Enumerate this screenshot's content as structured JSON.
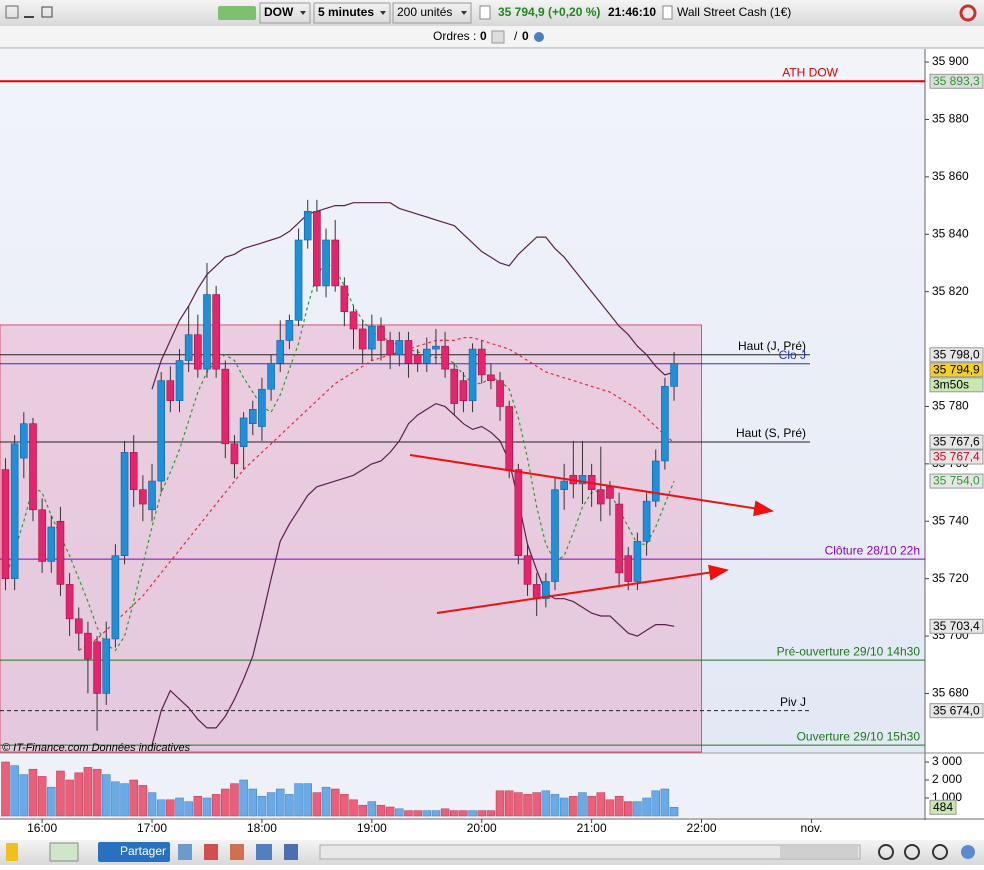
{
  "toolbar": {
    "symbol": "DOW",
    "period": "5 minutes",
    "quantity": "200 unités",
    "quote": "35 794,9 (+0,20 %)",
    "time": "21:46:10",
    "instrument": "Wall Street Cash (1€)"
  },
  "orders": {
    "label": "Ordres :",
    "buy": "0",
    "separator": "/",
    "sell": "0"
  },
  "share": "Partager",
  "watermark": "© IT-Finance.com  Données indicatives",
  "chart_data": {
    "type": "candlestick",
    "x": [
      940,
      945,
      950,
      955,
      960,
      965,
      970,
      975,
      980,
      985,
      990,
      995,
      1000,
      1005,
      1010,
      1015,
      1020,
      1025,
      1030,
      1035,
      1040,
      1045,
      1050,
      1055,
      1060,
      1065,
      1070,
      1075,
      1080,
      1085,
      1090,
      1095,
      1100,
      1105,
      1110,
      1115,
      1120,
      1125,
      1130,
      1135,
      1140,
      1145,
      1150,
      1155,
      1160,
      1165,
      1170,
      1175,
      1180,
      1185,
      1190,
      1195,
      1200,
      1205,
      1210,
      1215,
      1220,
      1225,
      1230,
      1235,
      1240,
      1245,
      1250,
      1255,
      1260,
      1265,
      1270,
      1275,
      1280,
      1285,
      1290,
      1295,
      1300,
      1305
    ],
    "open": [
      35758,
      35720,
      35762,
      35774,
      35744,
      35726,
      35740,
      35718,
      35706,
      35701,
      35698,
      35680,
      35699,
      35728,
      35764,
      35751,
      35744,
      35754,
      35789,
      35782,
      35796,
      35805,
      35793,
      35819,
      35793,
      35767,
      35766,
      35774,
      35773,
      35786,
      35795,
      35803,
      35810,
      35838,
      35848,
      35822,
      35838,
      35822,
      35813,
      35807,
      35800,
      35808,
      35803,
      35798,
      35803,
      35798,
      35795,
      35800,
      35801,
      35793,
      35789,
      35782,
      35800,
      35791,
      35789,
      35780,
      35758,
      35728,
      35718,
      35713,
      35719,
      35751,
      35756,
      35753,
      35756,
      35751,
      35752,
      35746,
      35728,
      35719,
      35733,
      35747,
      35761,
      35787
    ],
    "high": [
      35762,
      35770,
      35778,
      35776,
      35748,
      35742,
      35745,
      35722,
      35710,
      35705,
      35700,
      35705,
      35732,
      35768,
      35770,
      35756,
      35760,
      35792,
      35794,
      35800,
      35815,
      35812,
      35830,
      35822,
      35796,
      35770,
      35778,
      35782,
      35790,
      35798,
      35810,
      35812,
      35842,
      35852,
      35852,
      35842,
      35845,
      35825,
      35815,
      35810,
      35812,
      35811,
      35806,
      35806,
      35806,
      35800,
      35804,
      35807,
      35806,
      35795,
      35792,
      35802,
      35803,
      35795,
      35792,
      35782,
      35760,
      35732,
      35722,
      35722,
      35755,
      35760,
      35768,
      35768,
      35760,
      35766,
      35754,
      35750,
      35731,
      35736,
      35750,
      35765,
      35790,
      35799
    ],
    "low": [
      35716,
      35716,
      35755,
      35740,
      35722,
      35722,
      35714,
      35700,
      35695,
      35680,
      35667,
      35676,
      35696,
      35725,
      35745,
      35740,
      35740,
      35750,
      35778,
      35778,
      35792,
      35790,
      35790,
      35790,
      35762,
      35755,
      35758,
      35770,
      35768,
      35782,
      35792,
      35800,
      35808,
      35835,
      35820,
      35818,
      35820,
      35808,
      35800,
      35795,
      35796,
      35796,
      35793,
      35794,
      35790,
      35792,
      35792,
      35795,
      35790,
      35777,
      35778,
      35778,
      35788,
      35786,
      35775,
      35755,
      35725,
      35714,
      35707,
      35710,
      35716,
      35744,
      35748,
      35746,
      35745,
      35740,
      35742,
      35717,
      35716,
      35716,
      35728,
      35745,
      35758,
      35782
    ],
    "close": [
      35720,
      35767,
      35774,
      35744,
      35726,
      35738,
      35718,
      35706,
      35701,
      35692,
      35680,
      35699,
      35728,
      35764,
      35751,
      35746,
      35754,
      35789,
      35782,
      35796,
      35805,
      35793,
      35819,
      35793,
      35767,
      35760,
      35776,
      35779,
      35786,
      35795,
      35803,
      35810,
      35838,
      35848,
      35822,
      35838,
      35822,
      35813,
      35807,
      35800,
      35808,
      35803,
      35798,
      35803,
      35795,
      35795,
      35800,
      35801,
      35793,
      35781,
      35782,
      35800,
      35791,
      35789,
      35780,
      35758,
      35728,
      35718,
      35713,
      35719,
      35751,
      35754,
      35753,
      35756,
      35751,
      35746,
      35748,
      35722,
      35719,
      35733,
      35747,
      35761,
      35787,
      35795
    ],
    "up_color": "#1f8fd8",
    "down_color": "#e3256e",
    "indicators": [
      {
        "color": "#5a2050",
        "dash": false,
        "values": [
          null,
          null,
          null,
          null,
          null,
          null,
          null,
          null,
          null,
          null,
          null,
          null,
          null,
          null,
          null,
          null,
          35786,
          35796,
          35803,
          35810,
          35815,
          35821,
          35826,
          35829,
          35832,
          35833,
          35835,
          35836,
          35837,
          35838,
          35839,
          35841,
          35844,
          35847,
          35848,
          35849,
          35850,
          35850,
          35851,
          35851,
          35851,
          35851,
          35851,
          35849,
          35848,
          35847,
          35846,
          35845,
          35844,
          35843,
          35840,
          35837,
          35834,
          35832,
          35830,
          35829,
          35833,
          35836,
          35839,
          35839,
          35835,
          35832,
          35828,
          35824,
          35820,
          35816,
          35812,
          35808,
          35805,
          35801,
          35798,
          35794,
          35791,
          35792
        ]
      },
      {
        "color": "#5a2050",
        "dash": false,
        "values": [
          null,
          null,
          null,
          null,
          null,
          null,
          null,
          null,
          null,
          null,
          null,
          null,
          null,
          null,
          null,
          null,
          35662,
          35674,
          35681,
          35678,
          35675,
          35671,
          35668,
          35668,
          35672,
          35678,
          35685,
          35693,
          35706,
          35720,
          35733,
          35739,
          35744,
          35749,
          35752,
          35753,
          35754,
          35755,
          35756,
          35758,
          35760,
          35761,
          35764,
          35768,
          35774,
          35777,
          35779,
          35781,
          35780,
          35777,
          35774,
          35772,
          35773,
          35771,
          35768,
          35761,
          35747,
          35732,
          35723,
          35715,
          35713,
          35713,
          35712,
          35710,
          35708,
          35707,
          35707,
          35704,
          35701,
          35700,
          35702,
          35704,
          35704,
          35703.4
        ]
      },
      {
        "color": "#e8283c",
        "dash": true,
        "values": [
          null,
          null,
          null,
          null,
          null,
          null,
          null,
          null,
          35695,
          35697,
          35699,
          35702,
          35705,
          35708,
          35711,
          35714,
          35718,
          35722,
          35726,
          35730,
          35734,
          35738,
          35742,
          35746,
          35750,
          35754,
          35758,
          35761,
          35764,
          35767,
          35770,
          35773,
          35776,
          35779,
          35782,
          35785,
          35788,
          35790,
          35792,
          35794,
          35796,
          35797,
          35798,
          35799,
          35800,
          35801,
          35802,
          35803,
          35803,
          35803,
          35804,
          35804,
          35803,
          35802,
          35801,
          35800,
          35798,
          35796,
          35794,
          35792,
          35791,
          35790,
          35789,
          35788,
          35787,
          35786,
          35785,
          35783,
          35781,
          35779,
          35776,
          35773,
          35770,
          35767.4
        ]
      },
      {
        "color": "#2a9a2a",
        "dash": true,
        "values": [
          35720,
          35730,
          35740,
          35752,
          35750,
          35742,
          35735,
          35728,
          35720,
          35712,
          35703,
          35697,
          35695,
          35700,
          35712,
          35725,
          35738,
          35750,
          35757,
          35765,
          35775,
          35785,
          35792,
          35796,
          35798,
          35796,
          35790,
          35785,
          35780,
          35778,
          35784,
          35793,
          35802,
          35815,
          35826,
          35830,
          35828,
          35822,
          35815,
          35810,
          35806,
          35804,
          35803,
          35801,
          35800,
          35799,
          35798,
          35797,
          35797,
          35795,
          35791,
          35788,
          35788,
          35790,
          35789,
          35786,
          35776,
          35762,
          35745,
          35732,
          35726,
          35728,
          35736,
          35745,
          35750,
          35751,
          35750,
          35744,
          35738,
          35732,
          35732,
          35738,
          35746,
          35754
        ]
      }
    ],
    "levels": [
      {
        "name": "ATH DOW",
        "value": 35893.3,
        "color": "#e00000",
        "style": "thick"
      },
      {
        "name": "Haut (J, Pré)",
        "value": 35798.0,
        "color": "#222222",
        "style": "thin"
      },
      {
        "name": "Clo J",
        "value": 35794.9,
        "color": "#2233dd",
        "style": "thin"
      },
      {
        "name": "Haut (S, Pré)",
        "value": 35767.6,
        "color": "#222222",
        "style": "thin"
      },
      {
        "name": "Clôture 28/10 22h",
        "value": 35726.8,
        "color": "#8a00c8",
        "style": "thin"
      },
      {
        "name": "Pré-ouverture 29/10 14h30",
        "value": 35691.6,
        "color": "#1a7a1a",
        "style": "thin"
      },
      {
        "name": "Piv J",
        "value": 35674.0,
        "color": "#222222",
        "style": "dashed"
      },
      {
        "name": "Ouverture 29/10 15h30",
        "value": 35662.0,
        "color": "#1a7a1a",
        "style": "thin"
      }
    ],
    "zone": {
      "top": 35808.4,
      "end": 1320,
      "color": "#e05070"
    },
    "badges": [
      {
        "value": 35893.3,
        "label": "35 893,3",
        "color": "#2a9a2a",
        "bg": "#dcdcdc"
      },
      {
        "value": 35798.0,
        "label": "35 798,0",
        "color": "#000000",
        "bg": "#e6e6e6"
      },
      {
        "value": 35794.9,
        "label": "35 794,9",
        "color": "#000000",
        "bg": "#f5d020"
      },
      {
        "value": 35767.6,
        "label": "35 767,6",
        "color": "#000000",
        "bg": "#e6e6e6"
      },
      {
        "value": 35767.4,
        "label": "35 767,4",
        "color": "#e00020",
        "bg": "#e6e6e6"
      },
      {
        "value": 35754.0,
        "label": "35 754,0",
        "color": "#2a9a2a",
        "bg": "#e6e6e6"
      },
      {
        "value": 35703.4,
        "label": "35 703,4",
        "color": "#000000",
        "bg": "#e6e6e6"
      },
      {
        "value": 35674.0,
        "label": "35 674,0",
        "color": "#000000",
        "bg": "#e6e6e6"
      }
    ],
    "countdown": "3m50s",
    "xlim": [
      937,
      1442
    ],
    "ylim": [
      35659.6,
      35904.9
    ],
    "xticks": [
      {
        "value": 960,
        "label": "16:00"
      },
      {
        "value": 1020,
        "label": "17:00"
      },
      {
        "value": 1080,
        "label": "18:00"
      },
      {
        "value": 1140,
        "label": "19:00"
      },
      {
        "value": 1200,
        "label": "20:00"
      },
      {
        "value": 1260,
        "label": "21:00"
      },
      {
        "value": 1320,
        "label": "22:00"
      },
      {
        "value": 1380,
        "label": "nov."
      }
    ],
    "yticks": [
      {
        "value": 35900,
        "label": "35 900"
      },
      {
        "value": 35880,
        "label": "35 880"
      },
      {
        "value": 35860,
        "label": "35 860"
      },
      {
        "value": 35840,
        "label": "35 840"
      },
      {
        "value": 35820,
        "label": "35 820"
      },
      {
        "value": 35780,
        "label": "35 780"
      },
      {
        "value": 35760,
        "label": "35 760"
      },
      {
        "value": 35740,
        "label": "35 740"
      },
      {
        "value": 35720,
        "label": "35 720"
      },
      {
        "value": 35700,
        "label": "35 700"
      },
      {
        "value": 35680,
        "label": "35 680"
      }
    ],
    "volume": {
      "values": [
        3000,
        2800,
        2300,
        2600,
        2200,
        1600,
        2500,
        2000,
        2400,
        2700,
        2600,
        2300,
        1900,
        1800,
        2000,
        1700,
        1300,
        900,
        900,
        1000,
        800,
        1100,
        1000,
        1200,
        1500,
        1800,
        2000,
        1500,
        1100,
        1300,
        1500,
        1200,
        1800,
        1800,
        1300,
        1600,
        1500,
        1200,
        900,
        600,
        800,
        600,
        500,
        400,
        300,
        300,
        300,
        300,
        400,
        300,
        300,
        300,
        300,
        300,
        1400,
        1400,
        1300,
        1200,
        1300,
        1400,
        1200,
        1000,
        1100,
        1300,
        1100,
        1300,
        900,
        1100,
        800,
        800,
        1000,
        1400,
        1500,
        484
      ],
      "ylim": [
        0,
        3333
      ],
      "yticks": [
        {
          "value": 3000,
          "label": "3 000"
        },
        {
          "value": 2000,
          "label": "2 000"
        },
        {
          "value": 1000,
          "label": "1 000"
        }
      ]
    }
  }
}
